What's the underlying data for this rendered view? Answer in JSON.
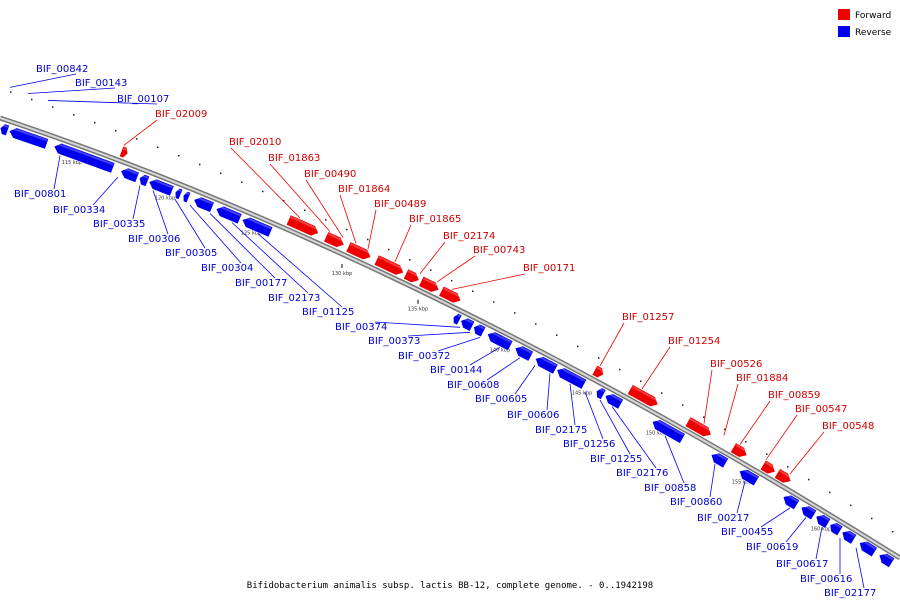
{
  "legend": {
    "forward": {
      "label": "Forward",
      "color": "#ee0000"
    },
    "reverse": {
      "label": "Reverse",
      "color": "#0000ee"
    }
  },
  "footer": "Bifidobacterium animalis subsp. lactis BB-12, complete genome. - 0..1942198",
  "scale_labels": [
    "115 kbp",
    "120 kbp",
    "125 kbp",
    "130 kbp",
    "135 kbp",
    "140 kbp",
    "145 kbp",
    "150 kbp",
    "155 kbp",
    "160 kbp"
  ],
  "forward_labels": [
    "BIF_02009",
    "BIF_02010",
    "BIF_01863",
    "BIF_00490",
    "BIF_01864",
    "BIF_00489",
    "BIF_01865",
    "BIF_02174",
    "BIF_00743",
    "BIF_00171",
    "BIF_01257",
    "BIF_01254",
    "BIF_00526",
    "BIF_01884",
    "BIF_00859",
    "BIF_00547",
    "BIF_00548"
  ],
  "reverse_labels": [
    "BIF_00842",
    "BIF_00143",
    "BIF_00107",
    "BIF_00801",
    "BIF_00334",
    "BIF_00335",
    "BIF_00306",
    "BIF_00305",
    "BIF_00304",
    "BIF_00177",
    "BIF_02173",
    "BIF_01125",
    "BIF_00374",
    "BIF_00373",
    "BIF_00372",
    "BIF_00144",
    "BIF_00608",
    "BIF_00605",
    "BIF_00606",
    "BIF_02175",
    "BIF_01256",
    "BIF_01255",
    "BIF_02176",
    "BIF_00858",
    "BIF_00860",
    "BIF_00217",
    "BIF_00455",
    "BIF_00619",
    "BIF_00617",
    "BIF_00616",
    "BIF_02177"
  ]
}
